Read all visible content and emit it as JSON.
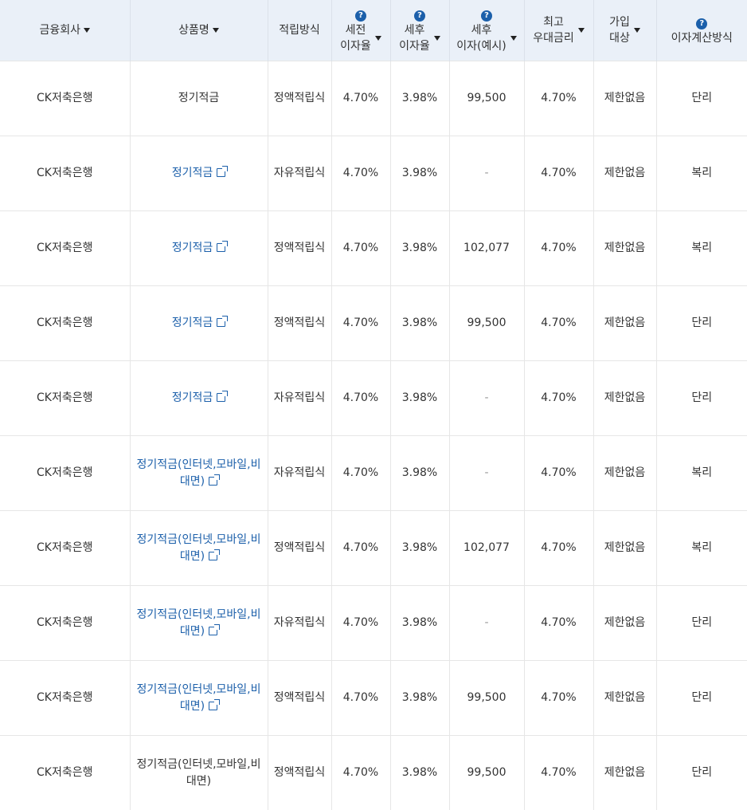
{
  "headers": {
    "company": "금융회사",
    "product": "상품명",
    "method": "적립방식",
    "pretax_line1": "세전",
    "pretax_line2": "이자율",
    "aftertax_line1": "세후",
    "aftertax_line2": "이자율",
    "aftertax_interest_line1": "세후",
    "aftertax_interest_line2": "이자(예시)",
    "max_rate_line1": "최고",
    "max_rate_line2": "우대금리",
    "target_line1": "가입",
    "target_line2": "대상",
    "calc_method": "이자계산방식",
    "help_glyph": "?"
  },
  "rows": [
    {
      "company": "CK저축은행",
      "product": "정기적금",
      "link": false,
      "method": "정액적립식",
      "pretax": "4.70%",
      "aftertax": "3.98%",
      "interest": "99,500",
      "max_rate": "4.70%",
      "target": "제한없음",
      "calc": "단리"
    },
    {
      "company": "CK저축은행",
      "product": "정기적금",
      "link": true,
      "method": "자유적립식",
      "pretax": "4.70%",
      "aftertax": "3.98%",
      "interest": "-",
      "max_rate": "4.70%",
      "target": "제한없음",
      "calc": "복리"
    },
    {
      "company": "CK저축은행",
      "product": "정기적금",
      "link": true,
      "method": "정액적립식",
      "pretax": "4.70%",
      "aftertax": "3.98%",
      "interest": "102,077",
      "max_rate": "4.70%",
      "target": "제한없음",
      "calc": "복리"
    },
    {
      "company": "CK저축은행",
      "product": "정기적금",
      "link": true,
      "method": "정액적립식",
      "pretax": "4.70%",
      "aftertax": "3.98%",
      "interest": "99,500",
      "max_rate": "4.70%",
      "target": "제한없음",
      "calc": "단리"
    },
    {
      "company": "CK저축은행",
      "product": "정기적금",
      "link": true,
      "method": "자유적립식",
      "pretax": "4.70%",
      "aftertax": "3.98%",
      "interest": "-",
      "max_rate": "4.70%",
      "target": "제한없음",
      "calc": "단리"
    },
    {
      "company": "CK저축은행",
      "product": "정기적금(인터넷,모바일,비대면)",
      "link": true,
      "method": "자유적립식",
      "pretax": "4.70%",
      "aftertax": "3.98%",
      "interest": "-",
      "max_rate": "4.70%",
      "target": "제한없음",
      "calc": "복리"
    },
    {
      "company": "CK저축은행",
      "product": "정기적금(인터넷,모바일,비대면)",
      "link": true,
      "method": "정액적립식",
      "pretax": "4.70%",
      "aftertax": "3.98%",
      "interest": "102,077",
      "max_rate": "4.70%",
      "target": "제한없음",
      "calc": "복리"
    },
    {
      "company": "CK저축은행",
      "product": "정기적금(인터넷,모바일,비대면)",
      "link": true,
      "method": "자유적립식",
      "pretax": "4.70%",
      "aftertax": "3.98%",
      "interest": "-",
      "max_rate": "4.70%",
      "target": "제한없음",
      "calc": "단리"
    },
    {
      "company": "CK저축은행",
      "product": "정기적금(인터넷,모바일,비대면)",
      "link": true,
      "method": "정액적립식",
      "pretax": "4.70%",
      "aftertax": "3.98%",
      "interest": "99,500",
      "max_rate": "4.70%",
      "target": "제한없음",
      "calc": "단리"
    },
    {
      "company": "CK저축은행",
      "product": "정기적금(인터넷,모바일,비대면)",
      "link": false,
      "method": "정액적립식",
      "pretax": "4.70%",
      "aftertax": "3.98%",
      "interest": "99,500",
      "max_rate": "4.70%",
      "target": "제한없음",
      "calc": "단리"
    }
  ],
  "colors": {
    "header_bg": "#eaf0f8",
    "link": "#1b5faa",
    "help_icon": "#1b5faa"
  }
}
